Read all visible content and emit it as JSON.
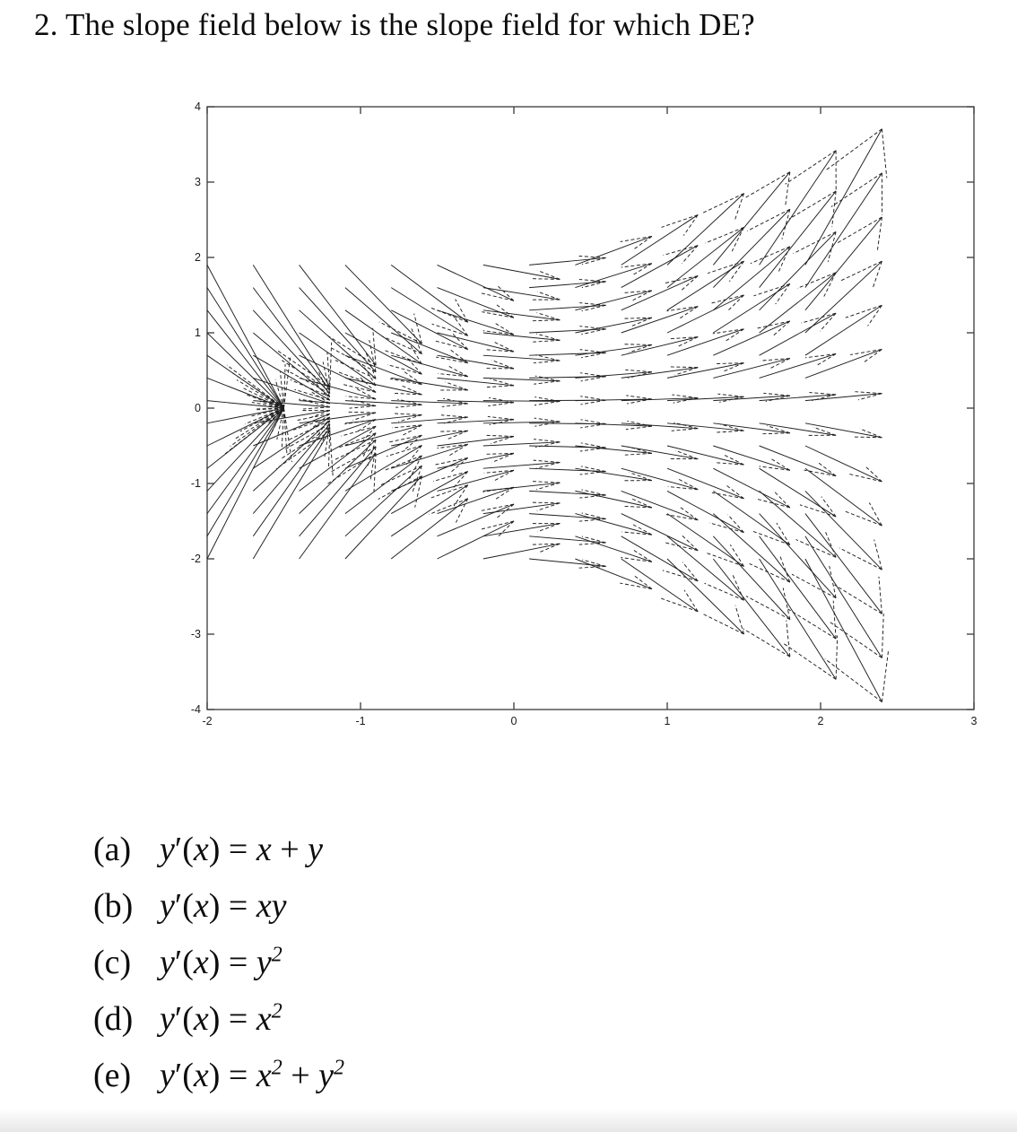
{
  "page": {
    "title": "2. The slope field below is the slope field for which DE?"
  },
  "chart_data": {
    "type": "slope_field",
    "title": "",
    "xlabel": "",
    "ylabel": "",
    "x_range": [
      -2,
      3
    ],
    "y_range": [
      -4,
      4
    ],
    "x_ticks": [
      "-2",
      "-1",
      "0",
      "1",
      "2",
      "3"
    ],
    "y_ticks": [
      "4",
      "3",
      "2",
      "1",
      "0",
      "-1",
      "-2",
      "-3",
      "-4"
    ],
    "grid_on": false,
    "legend": "none",
    "slope_expr": "x*y",
    "grid": {
      "x_min": -2,
      "y_min": -2,
      "step": 0.3,
      "cols": 14,
      "rows": 14
    },
    "arrow": {
      "dx": 0.5,
      "head_alpha": 0.33,
      "head_beta": 0.33,
      "shaft_style": "solid",
      "head_style": "dashed"
    },
    "colors": {
      "line": "#1f1f1f",
      "axis": "#474747",
      "tick_label": "#1a1a1a"
    }
  },
  "options": [
    {
      "key": "a",
      "label": "(a)",
      "tokens": [
        [
          "i",
          "y"
        ],
        [
          "r",
          "′("
        ],
        [
          "i",
          "x"
        ],
        [
          "r",
          ") = "
        ],
        [
          "i",
          "x"
        ],
        [
          "r",
          " + "
        ],
        [
          "i",
          "y"
        ]
      ]
    },
    {
      "key": "b",
      "label": "(b)",
      "tokens": [
        [
          "i",
          "y"
        ],
        [
          "r",
          "′("
        ],
        [
          "i",
          "x"
        ],
        [
          "r",
          ") = "
        ],
        [
          "i",
          "xy"
        ]
      ]
    },
    {
      "key": "c",
      "label": "(c)",
      "tokens": [
        [
          "i",
          "y"
        ],
        [
          "r",
          "′("
        ],
        [
          "i",
          "x"
        ],
        [
          "r",
          ") = "
        ],
        [
          "i",
          "y"
        ],
        [
          "s",
          "2"
        ]
      ]
    },
    {
      "key": "d",
      "label": "(d)",
      "tokens": [
        [
          "i",
          "y"
        ],
        [
          "r",
          "′("
        ],
        [
          "i",
          "x"
        ],
        [
          "r",
          ") = "
        ],
        [
          "i",
          "x"
        ],
        [
          "s",
          "2"
        ]
      ]
    },
    {
      "key": "e",
      "label": "(e)",
      "tokens": [
        [
          "i",
          "y"
        ],
        [
          "r",
          "′("
        ],
        [
          "i",
          "x"
        ],
        [
          "r",
          ") = "
        ],
        [
          "i",
          "x"
        ],
        [
          "s",
          "2"
        ],
        [
          "r",
          " + "
        ],
        [
          "i",
          "y"
        ],
        [
          "s",
          "2"
        ]
      ]
    }
  ]
}
